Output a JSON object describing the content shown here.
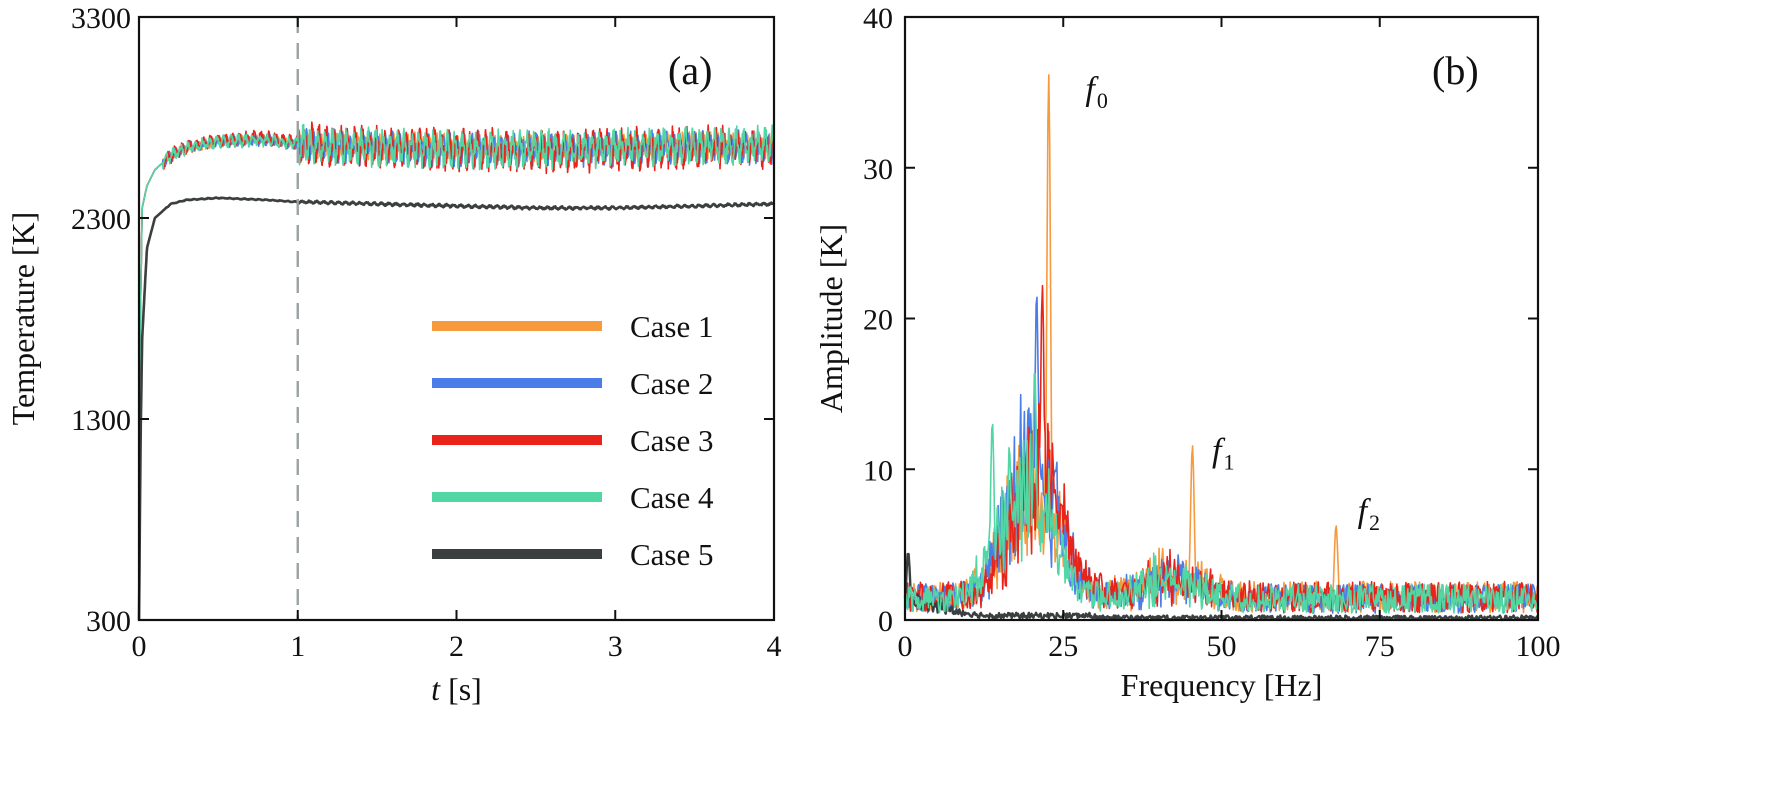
{
  "colors": {
    "case1": "#f7993d",
    "case2": "#4a7de8",
    "case3": "#e8231a",
    "case4": "#52d6a3",
    "case5": "#3b3f3f",
    "marker_line": "#9aa3a3"
  },
  "chart_data": [
    {
      "id": "a",
      "type": "line",
      "panel_label": "(a)",
      "xlabel_var": "t",
      "xlabel_unit": " [s]",
      "ylabel": "Temperature [K]",
      "xlim": [
        0,
        4
      ],
      "ylim": [
        300,
        3300
      ],
      "xticks": [
        "0",
        "1",
        "2",
        "3",
        "4"
      ],
      "xtick_values": [
        0,
        1,
        2,
        3,
        4
      ],
      "yticks": [
        "300",
        "1300",
        "2300",
        "3300"
      ],
      "ytick_values": [
        300,
        1300,
        2300,
        3300
      ],
      "vertical_marker_x": 1,
      "legend": [
        "Case 1",
        "Case 2",
        "Case 3",
        "Case 4",
        "Case 5"
      ],
      "legend_position": "bottom-right",
      "series": [
        {
          "name": "Case 1",
          "color_key": "case1",
          "x": [
            0,
            0.02,
            0.05,
            0.1,
            0.2,
            0.3,
            0.5,
            0.8,
            1.0,
            1.5,
            2.0,
            2.5,
            3.0,
            3.5,
            4.0
          ],
          "y": [
            1400,
            2350,
            2460,
            2540,
            2610,
            2650,
            2680,
            2690,
            2670,
            2660,
            2650,
            2650,
            2650,
            2660,
            2660
          ],
          "fluctuation_after_t1": 70
        },
        {
          "name": "Case 2",
          "color_key": "case2",
          "x": [
            0,
            0.02,
            0.05,
            0.1,
            0.2,
            0.3,
            0.5,
            0.8,
            1.0,
            1.5,
            2.0,
            2.5,
            3.0,
            3.5,
            4.0
          ],
          "y": [
            1400,
            2350,
            2460,
            2540,
            2610,
            2650,
            2680,
            2690,
            2670,
            2650,
            2640,
            2640,
            2640,
            2650,
            2650
          ],
          "fluctuation_after_t1": 90
        },
        {
          "name": "Case 3",
          "color_key": "case3",
          "x": [
            0,
            0.02,
            0.05,
            0.1,
            0.2,
            0.3,
            0.5,
            0.8,
            1.0,
            1.5,
            2.0,
            2.5,
            3.0,
            3.5,
            4.0
          ],
          "y": [
            1400,
            2350,
            2460,
            2540,
            2610,
            2650,
            2690,
            2700,
            2670,
            2650,
            2640,
            2630,
            2640,
            2650,
            2650
          ],
          "fluctuation_after_t1": 110
        },
        {
          "name": "Case 4",
          "color_key": "case4",
          "x": [
            0,
            0.02,
            0.05,
            0.1,
            0.2,
            0.3,
            0.5,
            0.8,
            1.0,
            1.5,
            2.0,
            2.5,
            3.0,
            3.5,
            4.0
          ],
          "y": [
            1400,
            2350,
            2460,
            2540,
            2610,
            2650,
            2680,
            2690,
            2670,
            2650,
            2640,
            2640,
            2650,
            2660,
            2660
          ],
          "fluctuation_after_t1": 100
        },
        {
          "name": "Case 5",
          "color_key": "case5",
          "x": [
            0,
            0.01,
            0.02,
            0.05,
            0.1,
            0.2,
            0.3,
            0.5,
            0.8,
            1.0,
            1.5,
            2.0,
            2.5,
            3.0,
            3.5,
            4.0
          ],
          "y": [
            300,
            1200,
            1700,
            2150,
            2300,
            2370,
            2390,
            2400,
            2390,
            2380,
            2370,
            2360,
            2350,
            2350,
            2360,
            2370
          ],
          "fluctuation_after_t1": 8
        }
      ]
    },
    {
      "id": "b",
      "type": "line",
      "panel_label": "(b)",
      "xlabel": "Frequency [Hz]",
      "ylabel": "Amplitude [K]",
      "xlim": [
        0,
        100
      ],
      "ylim": [
        0,
        40
      ],
      "xticks": [
        "0",
        "25",
        "50",
        "75",
        "100"
      ],
      "xtick_values": [
        0,
        25,
        50,
        75,
        100
      ],
      "yticks": [
        "0",
        "10",
        "20",
        "30",
        "40"
      ],
      "ytick_values": [
        0,
        10,
        20,
        30,
        40
      ],
      "annotations": [
        {
          "text": "f",
          "sub": "0",
          "x": 28.5,
          "y": 34.5
        },
        {
          "text": "f",
          "sub": "1",
          "x": 48.5,
          "y": 10.5
        },
        {
          "text": "f",
          "sub": "2",
          "x": 71.5,
          "y": 6.5
        }
      ],
      "series": [
        {
          "name": "Case 1",
          "color_key": "case1",
          "peaks": [
            {
              "f": 22.7,
              "a": 36.2
            },
            {
              "f": 45.4,
              "a": 11.6
            },
            {
              "f": 68.1,
              "a": 6.3
            }
          ],
          "band_center": 20,
          "band_amp": 10,
          "noise_floor": 1.6
        },
        {
          "name": "Case 2",
          "color_key": "case2",
          "peaks": [
            {
              "f": 20.8,
              "a": 21.8
            }
          ],
          "band_center": 20,
          "band_amp": 12,
          "noise_floor": 1.5
        },
        {
          "name": "Case 3",
          "color_key": "case3",
          "peaks": [
            {
              "f": 21.7,
              "a": 22.2
            }
          ],
          "band_center": 21,
          "band_amp": 11,
          "noise_floor": 1.6
        },
        {
          "name": "Case 4",
          "color_key": "case4",
          "peaks": [
            {
              "f": 20.5,
              "a": 16.8
            },
            {
              "f": 13.8,
              "a": 13.2
            }
          ],
          "band_center": 19,
          "band_amp": 10,
          "noise_floor": 1.5
        },
        {
          "name": "Case 5",
          "color_key": "case5",
          "peaks": [
            {
              "f": 0.5,
              "a": 4.5
            }
          ],
          "band_center": 2,
          "band_amp": 1.2,
          "noise_floor": 0.3
        }
      ]
    }
  ]
}
